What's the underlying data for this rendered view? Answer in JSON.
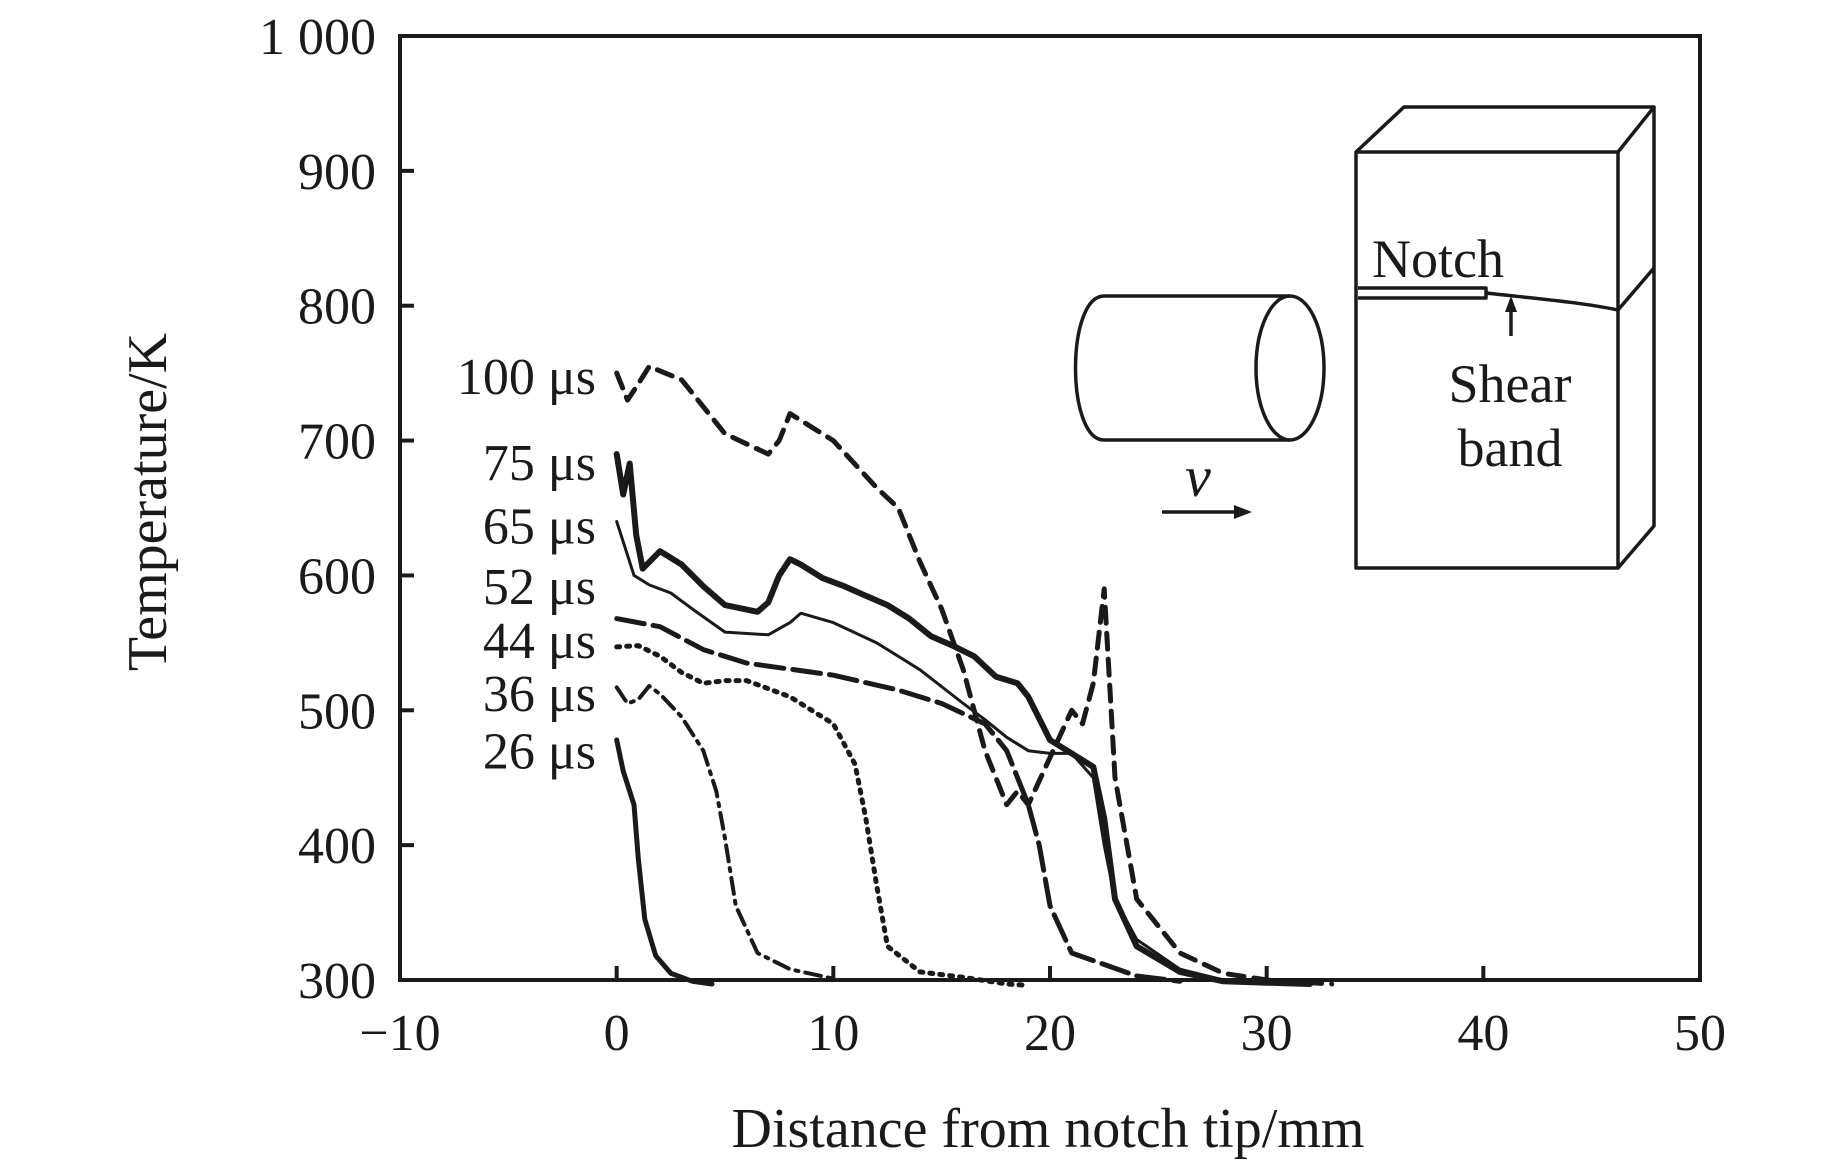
{
  "chart_data": {
    "type": "line",
    "xlabel": "Distance from notch tip/mm",
    "ylabel": "Temperature/K",
    "xlim": [
      -10,
      50
    ],
    "ylim": [
      300,
      1000
    ],
    "x_ticks": [
      -10,
      0,
      10,
      20,
      30,
      40,
      50
    ],
    "x_tick_labels": [
      "−10",
      "0",
      "10",
      "20",
      "30",
      "40",
      "50"
    ],
    "y_ticks": [
      300,
      400,
      500,
      600,
      700,
      800,
      900,
      1000
    ],
    "y_tick_labels": [
      "300",
      "400",
      "500",
      "600",
      "700",
      "800",
      "900",
      "1 000"
    ],
    "grid": false,
    "series": [
      {
        "name": "26 μs",
        "label_value": 470,
        "style": "solid",
        "width": 5,
        "x": [
          0,
          0.3,
          0.8,
          1.0,
          1.3,
          1.8,
          2.5,
          3.5,
          4.4
        ],
        "y": [
          478,
          455,
          430,
          390,
          345,
          318,
          305,
          299,
          297
        ]
      },
      {
        "name": "36 μs",
        "label_value": 513,
        "style": "dashdot",
        "width": 4,
        "x": [
          0,
          0.5,
          1.0,
          1.5,
          2.0,
          3.0,
          4.0,
          4.6,
          5.0,
          5.5,
          6.5,
          8.0,
          10.0
        ],
        "y": [
          517,
          505,
          508,
          518,
          512,
          495,
          470,
          440,
          405,
          355,
          320,
          308,
          301
        ]
      },
      {
        "name": "44 μs",
        "label_value": 552,
        "style": "dotted",
        "width": 5,
        "x": [
          0,
          1.0,
          2.0,
          3.0,
          4.0,
          5.0,
          6.0,
          8.0,
          10.0,
          11.0,
          11.5,
          12.0,
          12.5,
          14.0,
          16.0,
          18.0,
          19.0
        ],
        "y": [
          547,
          548,
          540,
          528,
          520,
          522,
          522,
          510,
          490,
          460,
          420,
          370,
          325,
          306,
          302,
          297,
          296
        ]
      },
      {
        "name": "52 μs",
        "label_value": 592,
        "style": "longdash",
        "width": 5,
        "x": [
          0,
          2.0,
          4.0,
          6.0,
          10.0,
          13.0,
          15.0,
          17.0,
          18.0,
          19.0,
          19.5,
          20.0,
          21.0,
          24.0,
          26.0
        ],
        "y": [
          568,
          562,
          545,
          535,
          526,
          515,
          505,
          490,
          470,
          430,
          400,
          355,
          320,
          303,
          299
        ]
      },
      {
        "name": "65 μs",
        "label_value": 637,
        "style": "solid-thin",
        "width": 3,
        "x": [
          0,
          0.3,
          0.8,
          1.5,
          2.5,
          3.5,
          5.0,
          7.0,
          8.0,
          8.5,
          10.0,
          12.0,
          14.0,
          16.0,
          17.0,
          18.0,
          19.0,
          20.0,
          21.0,
          22.0,
          22.5,
          23.0,
          24.0,
          26.0,
          28.0,
          30.0,
          32.0
        ],
        "y": [
          640,
          625,
          600,
          593,
          587,
          575,
          558,
          556,
          565,
          572,
          565,
          550,
          530,
          505,
          493,
          480,
          470,
          468,
          468,
          450,
          400,
          360,
          330,
          308,
          300,
          298,
          297
        ]
      },
      {
        "name": "75 μs",
        "label_value": 684,
        "style": "solid-bold",
        "width": 6,
        "x": [
          0,
          0.3,
          0.6,
          0.9,
          1.2,
          2.0,
          3.0,
          4.0,
          5.0,
          6.5,
          7.0,
          7.5,
          8.0,
          8.5,
          9.5,
          10.5,
          11.5,
          12.5,
          13.5,
          14.5,
          15.5,
          16.5,
          17.5,
          18.5,
          19.0,
          20.0,
          21.0,
          22.0,
          22.5,
          23.0,
          24.0,
          26.0,
          28.0,
          30.0,
          32.0
        ],
        "y": [
          690,
          660,
          683,
          630,
          605,
          618,
          608,
          592,
          578,
          573,
          580,
          600,
          612,
          608,
          598,
          592,
          585,
          578,
          568,
          555,
          548,
          540,
          525,
          520,
          510,
          478,
          468,
          458,
          420,
          360,
          325,
          306,
          299,
          298,
          297
        ]
      },
      {
        "name": "100 μs",
        "label_value": 748,
        "style": "dashed",
        "width": 5,
        "x": [
          0,
          0.5,
          1.0,
          1.5,
          3.0,
          5.0,
          7.0,
          7.5,
          8.0,
          10.0,
          12.0,
          13.0,
          14.0,
          15.0,
          16.0,
          17.0,
          18.0,
          18.5,
          19.0,
          20.0,
          21.0,
          21.5,
          22.0,
          22.5,
          23.0,
          24.0,
          26.0,
          28.0,
          30.0,
          33.0
        ],
        "y": [
          750,
          730,
          742,
          755,
          745,
          705,
          690,
          700,
          720,
          700,
          665,
          650,
          610,
          575,
          530,
          470,
          430,
          440,
          430,
          465,
          500,
          490,
          520,
          590,
          450,
          360,
          320,
          305,
          300,
          297
        ]
      }
    ]
  },
  "inset": {
    "notch_label": "Notch",
    "shear_band_label_line1": "Shear",
    "shear_band_label_line2": "band",
    "velocity_label": "v"
  }
}
